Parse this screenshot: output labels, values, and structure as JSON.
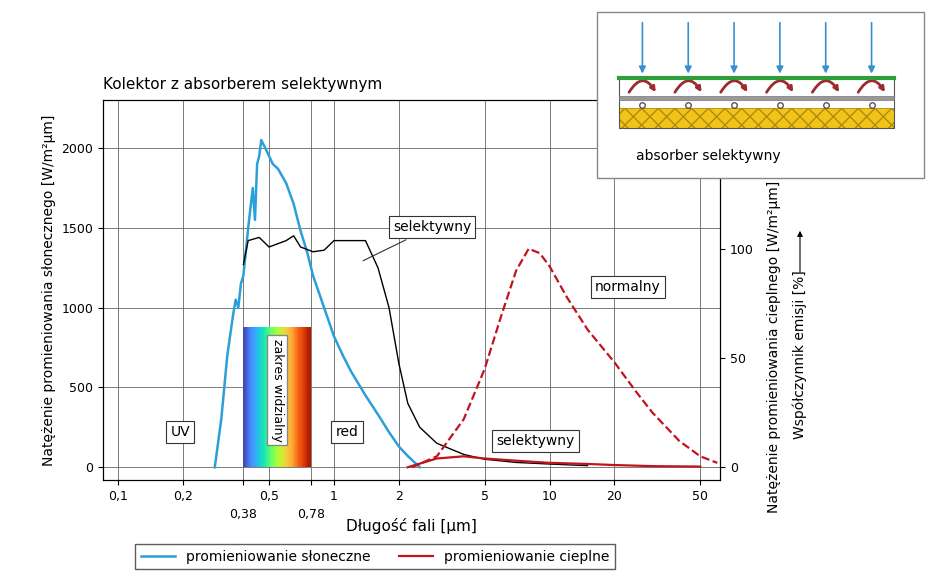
{
  "chart_data": {
    "type": "line",
    "title": "Kolektor z absorberem selektywnym",
    "x_label": "Długość fali [µm]",
    "y_label": "Natężenie promieniowania słonecznego [W/m²µm]",
    "y2_label": "Natężenie promieniowania cieplnego [W/m²µm]",
    "y2_label_2": "Współczynnik emisji [%]",
    "log": "x",
    "grid": true,
    "legend": "lower center",
    "xlim": [
      0.085,
      62
    ],
    "xticks": [
      {
        "value": 0.1,
        "label": "0,1"
      },
      {
        "value": 0.2,
        "label": "0,2"
      },
      {
        "value": 0.38,
        "label": "0,38"
      },
      {
        "value": 0.5,
        "label": "0,5"
      },
      {
        "value": 0.78,
        "label": "0,78"
      },
      1,
      2,
      5,
      10,
      20,
      50
    ],
    "ylim": [
      -80,
      2300
    ],
    "yticks": [
      0,
      500,
      1000,
      1500,
      2000
    ],
    "y2lim": [
      -5.84,
      168
    ],
    "y2ticks": [
      0,
      50,
      100
    ],
    "visible_band": {
      "label": "zakres widzialny",
      "x": [
        0.38,
        0.78
      ],
      "height": 880
    },
    "series": [
      {
        "name": "promieniowanie słoneczne",
        "color": "#2b9fd8",
        "line_style": "solid",
        "x": [
          0.28,
          0.3,
          0.32,
          0.34,
          0.35,
          0.36,
          0.37,
          0.38,
          0.4,
          0.42,
          0.43,
          0.44,
          0.45,
          0.46,
          0.48,
          0.5,
          0.52,
          0.55,
          0.6,
          0.65,
          0.7,
          0.75,
          0.8,
          0.9,
          1.0,
          1.1,
          1.2,
          1.4,
          1.6,
          1.8,
          2.0,
          2.2,
          2.5
        ],
        "values": [
          0,
          300,
          700,
          950,
          1050,
          1000,
          1150,
          1200,
          1500,
          1750,
          1550,
          1900,
          1950,
          2050,
          2000,
          1950,
          1900,
          1870,
          1780,
          1650,
          1480,
          1350,
          1200,
          1000,
          820,
          700,
          600,
          450,
          330,
          220,
          130,
          70,
          0
        ]
      },
      {
        "color": "#000000",
        "line_style": "solid",
        "x": [
          0.38,
          0.4,
          0.45,
          0.5,
          0.6,
          0.65,
          0.7,
          0.8,
          0.9,
          1.0,
          1.4,
          1.6,
          1.8,
          2.0,
          2.2,
          2.5,
          3,
          4,
          5,
          7,
          10,
          15
        ],
        "values": [
          1270,
          1420,
          1440,
          1380,
          1420,
          1450,
          1380,
          1350,
          1360,
          1420,
          1420,
          1250,
          1000,
          650,
          400,
          250,
          150,
          80,
          50,
          30,
          20,
          10
        ]
      },
      {
        "color": "#c0141e",
        "line_style": "dashed",
        "axis": "y2",
        "x": [
          2.3,
          3,
          4,
          5,
          6,
          7,
          8,
          9,
          10,
          12,
          15,
          20,
          25,
          30,
          40,
          50,
          60
        ],
        "values": [
          0,
          5,
          22,
          45,
          70,
          90,
          100,
          98,
          92,
          78,
          63,
          48,
          35,
          25,
          12,
          5,
          2
        ]
      },
      {
        "name": "promieniowanie cieplne",
        "color": "#c0141e",
        "line_style": "solid",
        "axis": "y2",
        "x": [
          2.2,
          3,
          4,
          5,
          7,
          10,
          15,
          20,
          30,
          50
        ],
        "values": [
          0,
          4,
          5,
          4,
          3,
          2,
          1.5,
          1,
          0.5,
          0.3
        ]
      }
    ],
    "annotations": [
      {
        "text": "UV"
      },
      {
        "text": "red"
      },
      {
        "text": "selektywny"
      },
      {
        "text": "normalny"
      },
      {
        "text": "selektywny"
      }
    ],
    "inset": {
      "label": "absorber selektywny"
    }
  }
}
